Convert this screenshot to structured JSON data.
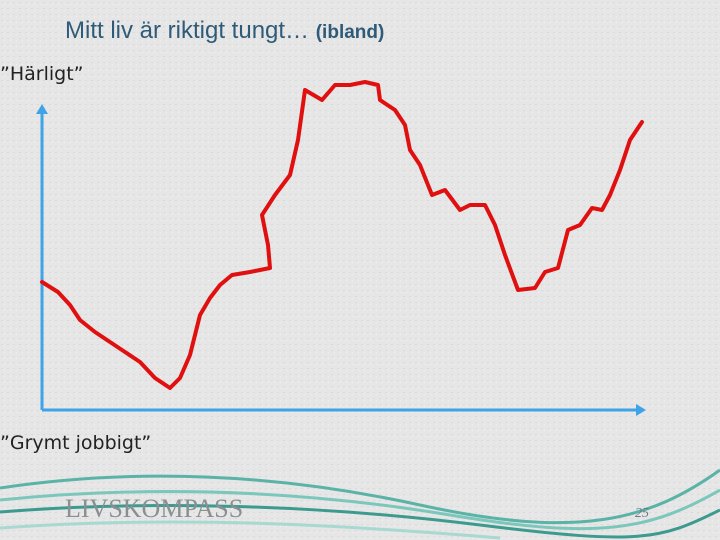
{
  "slide": {
    "title": "Mitt liv är riktigt tungt…",
    "title_note": "(ibland)",
    "top_label": "”Härligt”",
    "bottom_label": "”Grymt jobbigt”",
    "logo": "LIVSKOMPASS",
    "page_number": "25"
  }
}
